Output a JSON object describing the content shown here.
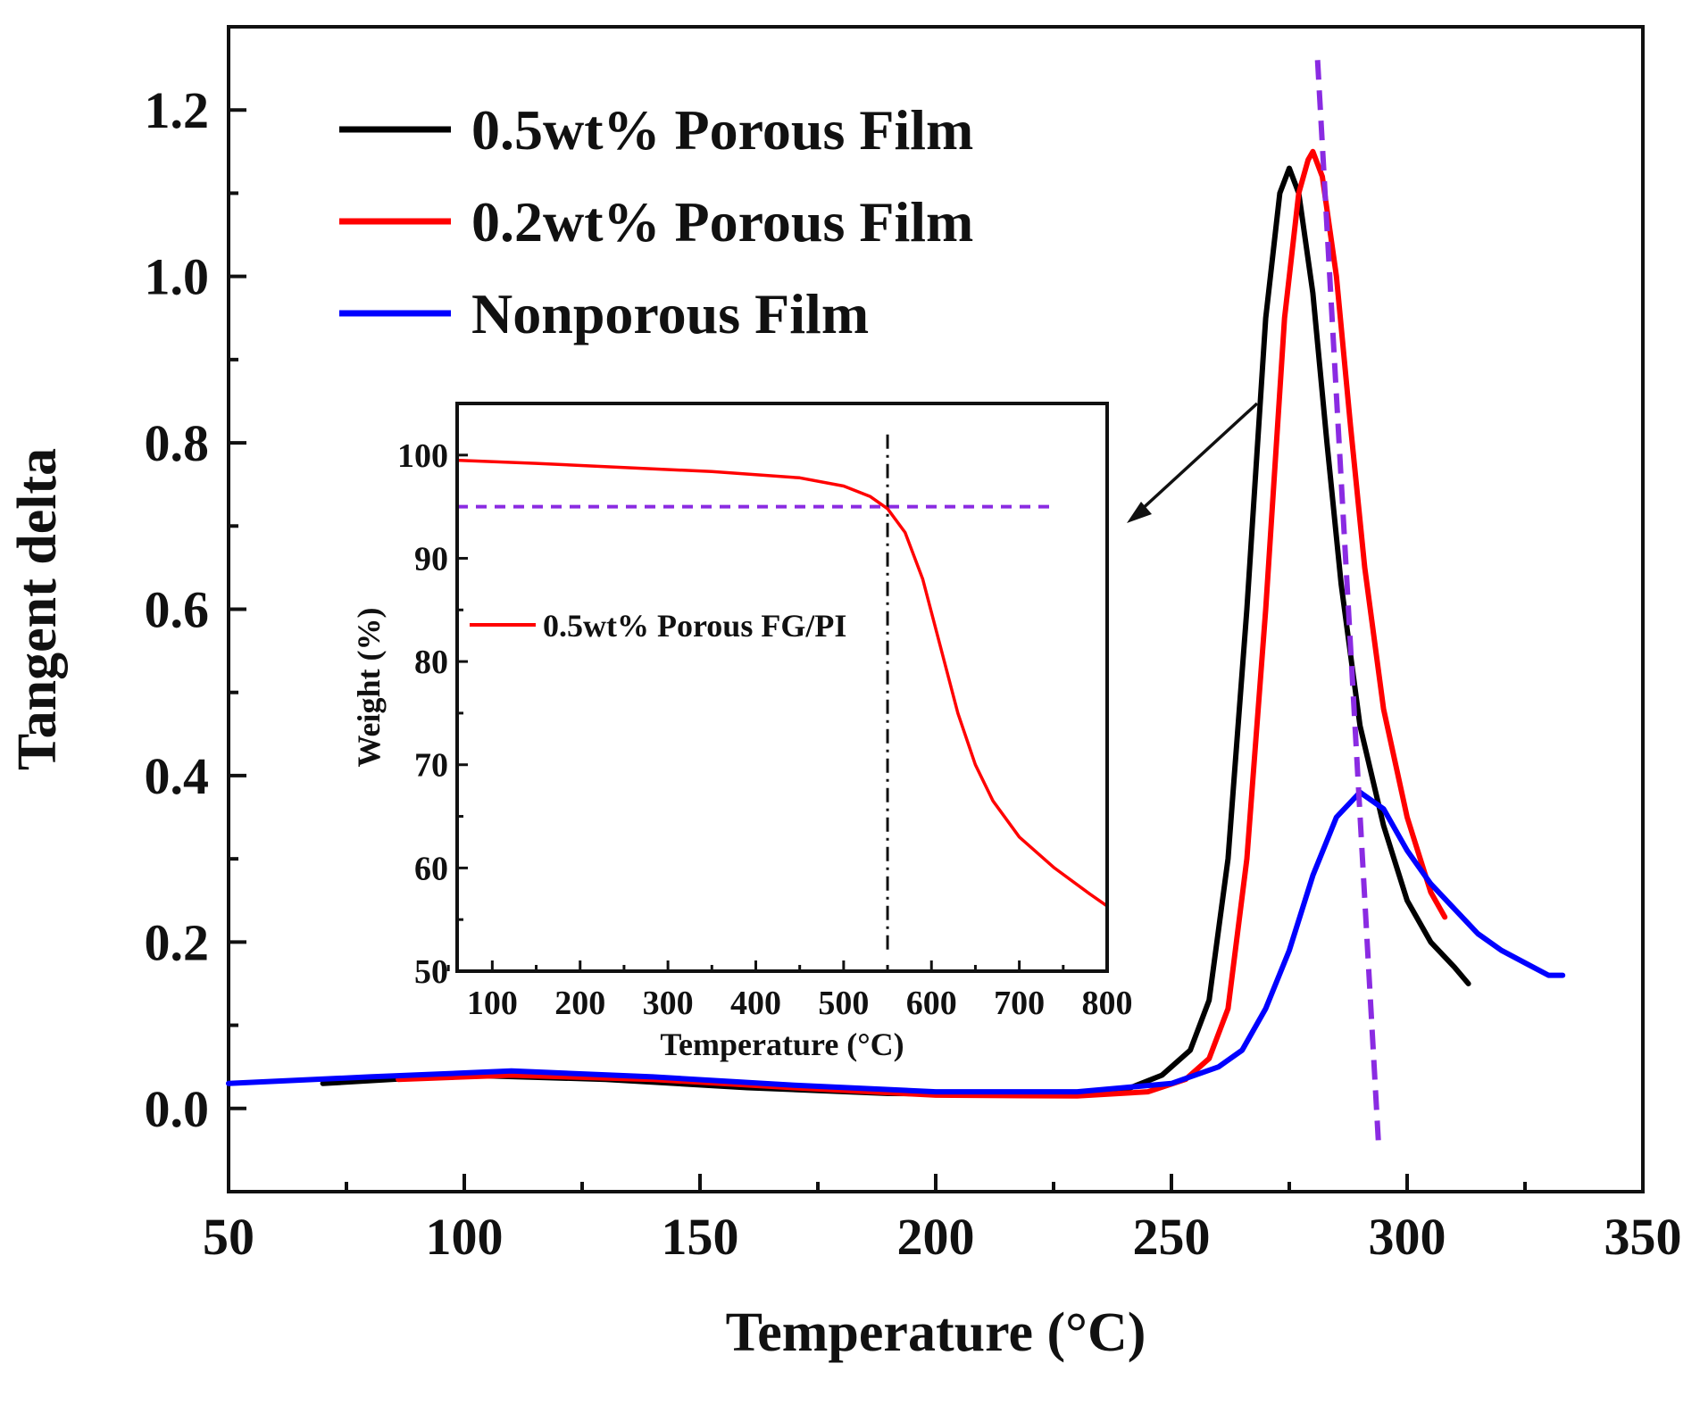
{
  "chart_data": [
    {
      "id": "main",
      "type": "line",
      "title": "",
      "xlabel": "Temperature (°C)",
      "ylabel": "Tangent delta",
      "xlim": [
        50,
        350
      ],
      "ylim": [
        -0.1,
        1.3
      ],
      "xticks": [
        50,
        100,
        150,
        200,
        250,
        300,
        350
      ],
      "yticks": [
        0.0,
        0.2,
        0.4,
        0.6,
        0.8,
        1.0,
        1.2
      ],
      "xtick_labels": [
        "50",
        "100",
        "150",
        "200",
        "250",
        "300",
        "350"
      ],
      "ytick_labels": [
        "0.0",
        "0.2",
        "0.4",
        "0.6",
        "0.8",
        "1.0",
        "1.2"
      ],
      "legend_position": "top-left",
      "series": [
        {
          "name": "0.5wt% Porous Film",
          "color": "#000000",
          "x": [
            70,
            100,
            130,
            160,
            190,
            220,
            240,
            248,
            254,
            258,
            262,
            266,
            270,
            273,
            275,
            277,
            280,
            283,
            286,
            290,
            295,
            300,
            305,
            310,
            313
          ],
          "y": [
            0.03,
            0.04,
            0.035,
            0.025,
            0.018,
            0.017,
            0.022,
            0.04,
            0.07,
            0.13,
            0.3,
            0.6,
            0.95,
            1.1,
            1.13,
            1.1,
            0.98,
            0.8,
            0.63,
            0.46,
            0.34,
            0.25,
            0.2,
            0.17,
            0.15
          ]
        },
        {
          "name": "0.2wt% Porous Film",
          "color": "#ff0000",
          "x": [
            86,
            110,
            140,
            170,
            200,
            230,
            245,
            253,
            258,
            262,
            266,
            270,
            274,
            277,
            279,
            280,
            282,
            285,
            288,
            291,
            295,
            300,
            305,
            308
          ],
          "y": [
            0.035,
            0.04,
            0.035,
            0.025,
            0.016,
            0.015,
            0.02,
            0.035,
            0.06,
            0.12,
            0.3,
            0.6,
            0.95,
            1.1,
            1.14,
            1.15,
            1.12,
            1.0,
            0.82,
            0.65,
            0.48,
            0.35,
            0.26,
            0.23
          ]
        },
        {
          "name": "Nonporous Film",
          "color": "#0000ff",
          "x": [
            50,
            80,
            110,
            140,
            170,
            200,
            230,
            250,
            260,
            265,
            270,
            275,
            280,
            285,
            290,
            295,
            300,
            305,
            310,
            315,
            320,
            325,
            330,
            333
          ],
          "y": [
            0.03,
            0.038,
            0.045,
            0.038,
            0.028,
            0.02,
            0.02,
            0.03,
            0.05,
            0.07,
            0.12,
            0.19,
            0.28,
            0.35,
            0.38,
            0.36,
            0.31,
            0.27,
            0.24,
            0.21,
            0.19,
            0.175,
            0.16,
            0.16
          ]
        }
      ],
      "guide_line": {
        "style": "dashed",
        "color": "#8a2be2",
        "from": [
          281,
          1.26
        ],
        "to": [
          294,
          -0.05
        ]
      }
    },
    {
      "id": "inset",
      "type": "line",
      "title": "",
      "xlabel": "Temperature (°C)",
      "ylabel": "Weight (%)",
      "xlim": [
        60,
        800
      ],
      "ylim": [
        50,
        105
      ],
      "xticks": [
        100,
        200,
        300,
        400,
        500,
        600,
        700,
        800
      ],
      "yticks": [
        50,
        60,
        70,
        80,
        90,
        100
      ],
      "xtick_labels": [
        "100",
        "200",
        "300",
        "400",
        "500",
        "600",
        "700",
        "800"
      ],
      "ytick_labels": [
        "50",
        "60",
        "70",
        "80",
        "90",
        "100"
      ],
      "legend_position": "middle-left",
      "series": [
        {
          "name": "0.5wt% Porous FG/PI",
          "color": "#ff0000",
          "x": [
            60,
            150,
            250,
            350,
            450,
            500,
            530,
            550,
            570,
            590,
            610,
            630,
            650,
            670,
            700,
            740,
            780,
            800
          ],
          "y": [
            99.5,
            99.2,
            98.8,
            98.4,
            97.8,
            97.0,
            96.0,
            94.8,
            92.5,
            88.0,
            81.5,
            75.0,
            70.0,
            66.5,
            63.0,
            60.0,
            57.5,
            56.3
          ]
        }
      ],
      "hline": {
        "y": 95,
        "x_range": [
          60,
          735
        ],
        "color": "#8a2be2",
        "style": "dashed"
      },
      "vline": {
        "x": 550,
        "y_range": [
          52,
          102
        ],
        "color": "#000000",
        "style": "dash-dot"
      }
    }
  ]
}
